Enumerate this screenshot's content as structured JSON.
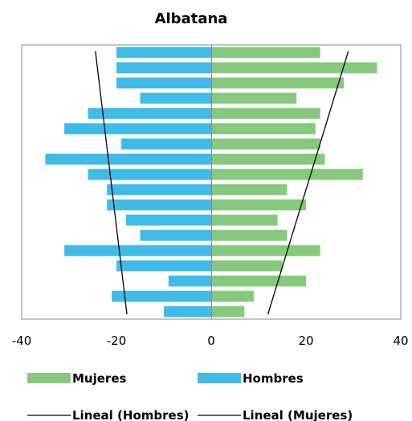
{
  "chart_data": {
    "type": "bar",
    "orientation": "horizontal",
    "title": "Albatana",
    "xlim": [
      -40,
      40
    ],
    "x_ticks": [
      -40,
      -20,
      0,
      20,
      40
    ],
    "x_tick_labels": [
      "-40",
      "-20",
      "0",
      "20",
      "40"
    ],
    "grid": false,
    "legend_position": "bottom",
    "series": [
      {
        "name": "Mujeres",
        "color": "#86c97d",
        "values": [
          23,
          35,
          28,
          18,
          23,
          22,
          23,
          24,
          32,
          16,
          20,
          14,
          16,
          23,
          15,
          20,
          9,
          7
        ]
      },
      {
        "name": "Hombres",
        "color": "#3fbbe8",
        "values": [
          -20,
          -20,
          -20,
          -15,
          -26,
          -31,
          -19,
          -35,
          -26,
          -22,
          -22,
          -18,
          -15,
          -31,
          -20,
          -9,
          -21,
          -10
        ]
      }
    ],
    "trendlines": [
      {
        "name": "Lineal (Hombres)",
        "color": "#000000"
      },
      {
        "name": "Lineal (Mujeres)",
        "color": "#000000"
      }
    ]
  }
}
